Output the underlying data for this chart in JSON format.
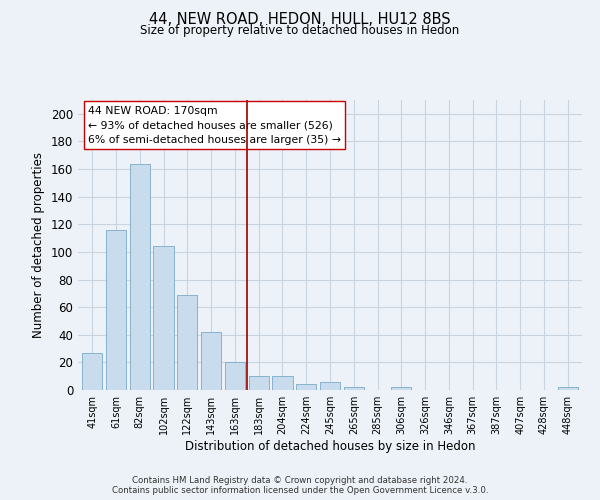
{
  "title": "44, NEW ROAD, HEDON, HULL, HU12 8BS",
  "subtitle": "Size of property relative to detached houses in Hedon",
  "xlabel": "Distribution of detached houses by size in Hedon",
  "ylabel": "Number of detached properties",
  "bar_color": "#c8dcee",
  "bar_edge_color": "#7aaac8",
  "background_color": "#edf2f8",
  "grid_color": "#d0d8e4",
  "categories": [
    "41sqm",
    "61sqm",
    "82sqm",
    "102sqm",
    "122sqm",
    "143sqm",
    "163sqm",
    "183sqm",
    "204sqm",
    "224sqm",
    "245sqm",
    "265sqm",
    "285sqm",
    "306sqm",
    "326sqm",
    "346sqm",
    "367sqm",
    "387sqm",
    "407sqm",
    "428sqm",
    "448sqm"
  ],
  "values": [
    27,
    116,
    164,
    104,
    69,
    42,
    20,
    10,
    10,
    4,
    6,
    2,
    0,
    2,
    0,
    0,
    0,
    0,
    0,
    0,
    2
  ],
  "ylim": [
    0,
    210
  ],
  "yticks": [
    0,
    20,
    40,
    60,
    80,
    100,
    120,
    140,
    160,
    180,
    200
  ],
  "vline_x": 6.5,
  "vline_color": "#990000",
  "annotation_title": "44 NEW ROAD: 170sqm",
  "annotation_line1": "← 93% of detached houses are smaller (526)",
  "annotation_line2": "6% of semi-detached houses are larger (35) →",
  "footer1": "Contains HM Land Registry data © Crown copyright and database right 2024.",
  "footer2": "Contains public sector information licensed under the Open Government Licence v.3.0."
}
